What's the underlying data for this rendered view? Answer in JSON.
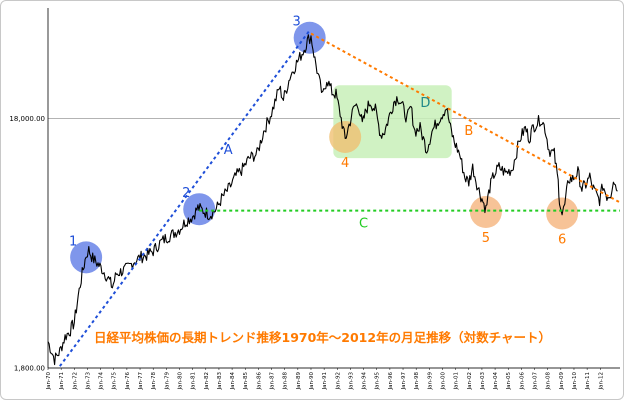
{
  "chart_data": {
    "type": "line",
    "title": "日経平均株価の長期トレンド推移1970年〜2012年の月足推移（対数チャート）",
    "y_scale": "log",
    "ylim": [
      1800,
      50000
    ],
    "y_ticks": [
      {
        "value": 18000,
        "label": "18,000.00"
      },
      {
        "value": 1800,
        "label": "1,800.00"
      }
    ],
    "xlim": [
      1970,
      2013.5
    ],
    "x_tick_labels": [
      "Jan-70",
      "Jan-71",
      "Jan-72",
      "Jan-73",
      "Jan-74",
      "Jan-75",
      "Jan-76",
      "Jan-77",
      "Jan-78",
      "Jan-79",
      "Jan-80",
      "Jan-81",
      "Jan-82",
      "Jan-83",
      "Jan-84",
      "Jan-85",
      "Jan-86",
      "Jan-87",
      "Jan-88",
      "Jan-89",
      "Jan-90",
      "Jan-91",
      "Jan-92",
      "Jan-93",
      "Jan-94",
      "Jan-95",
      "Jan-96",
      "Jan-97",
      "Jan-98",
      "Jan-99",
      "Jan-00",
      "Jan-01",
      "Jan-02",
      "Jan-03",
      "Jan-04",
      "Jan-05",
      "Jan-06",
      "Jan-07",
      "Jan-08",
      "Jan-09",
      "Jan-10",
      "Jan-11",
      "Jan-12"
    ],
    "series": [
      {
        "color": "#000000",
        "points": [
          [
            1970.0,
            2300
          ],
          [
            1970.5,
            1950
          ],
          [
            1970.9,
            2100
          ],
          [
            1971.3,
            2400
          ],
          [
            1971.7,
            2550
          ],
          [
            1972.0,
            2750
          ],
          [
            1972.3,
            3500
          ],
          [
            1972.6,
            4300
          ],
          [
            1972.9,
            5100
          ],
          [
            1973.1,
            5350
          ],
          [
            1973.4,
            4950
          ],
          [
            1973.8,
            4700
          ],
          [
            1974.1,
            4500
          ],
          [
            1974.6,
            4100
          ],
          [
            1974.9,
            3800
          ],
          [
            1975.2,
            4300
          ],
          [
            1975.6,
            4400
          ],
          [
            1976.0,
            4500
          ],
          [
            1976.5,
            4800
          ],
          [
            1977.0,
            5000
          ],
          [
            1977.5,
            5100
          ],
          [
            1978.0,
            5300
          ],
          [
            1978.5,
            5700
          ],
          [
            1979.0,
            6000
          ],
          [
            1979.5,
            6200
          ],
          [
            1980.0,
            6500
          ],
          [
            1980.5,
            7000
          ],
          [
            1981.0,
            7300
          ],
          [
            1981.4,
            7900
          ],
          [
            1981.8,
            7700
          ],
          [
            1982.3,
            7400
          ],
          [
            1982.8,
            7800
          ],
          [
            1983.2,
            8600
          ],
          [
            1983.8,
            9500
          ],
          [
            1984.3,
            10600
          ],
          [
            1984.8,
            11300
          ],
          [
            1985.3,
            12500
          ],
          [
            1985.9,
            13000
          ],
          [
            1986.4,
            16000
          ],
          [
            1987.0,
            19000
          ],
          [
            1987.6,
            24000
          ],
          [
            1987.9,
            21500
          ],
          [
            1988.4,
            26500
          ],
          [
            1988.9,
            30000
          ],
          [
            1989.4,
            33500
          ],
          [
            1989.8,
            37500
          ],
          [
            1990.0,
            38500
          ],
          [
            1990.3,
            31000
          ],
          [
            1990.7,
            24500
          ],
          [
            1990.9,
            22000
          ],
          [
            1991.2,
            26000
          ],
          [
            1991.6,
            23000
          ],
          [
            1991.9,
            22500
          ],
          [
            1992.3,
            18000
          ],
          [
            1992.6,
            14800
          ],
          [
            1992.9,
            17000
          ],
          [
            1993.3,
            20200
          ],
          [
            1993.6,
            20500
          ],
          [
            1993.9,
            17000
          ],
          [
            1994.2,
            19500
          ],
          [
            1994.5,
            21000
          ],
          [
            1994.9,
            19500
          ],
          [
            1995.3,
            15500
          ],
          [
            1995.6,
            16000
          ],
          [
            1995.9,
            18000
          ],
          [
            1996.3,
            21000
          ],
          [
            1996.6,
            22000
          ],
          [
            1996.9,
            20500
          ],
          [
            1997.3,
            18000
          ],
          [
            1997.6,
            20000
          ],
          [
            1997.9,
            16000
          ],
          [
            1998.3,
            16500
          ],
          [
            1998.8,
            13500
          ],
          [
            1999.2,
            16000
          ],
          [
            1999.6,
            17500
          ],
          [
            1999.9,
            18500
          ],
          [
            2000.3,
            20000
          ],
          [
            2000.6,
            16500
          ],
          [
            2000.9,
            14500
          ],
          [
            2001.3,
            13000
          ],
          [
            2001.7,
            10500
          ],
          [
            2002.0,
            10000
          ],
          [
            2002.3,
            11500
          ],
          [
            2002.7,
            9500
          ],
          [
            2003.0,
            8600
          ],
          [
            2003.3,
            7800
          ],
          [
            2003.6,
            9500
          ],
          [
            2003.9,
            10700
          ],
          [
            2004.3,
            11500
          ],
          [
            2004.8,
            10900
          ],
          [
            2005.3,
            11300
          ],
          [
            2005.9,
            15000
          ],
          [
            2006.3,
            16500
          ],
          [
            2006.6,
            15000
          ],
          [
            2006.9,
            16700
          ],
          [
            2007.3,
            17500
          ],
          [
            2007.5,
            18000
          ],
          [
            2007.8,
            16500
          ],
          [
            2008.1,
            13500
          ],
          [
            2008.5,
            13000
          ],
          [
            2008.8,
            10000
          ],
          [
            2008.9,
            8500
          ],
          [
            2009.1,
            7400
          ],
          [
            2009.3,
            8100
          ],
          [
            2009.6,
            10300
          ],
          [
            2009.9,
            10300
          ],
          [
            2010.3,
            11000
          ],
          [
            2010.6,
            9400
          ],
          [
            2010.9,
            9800
          ],
          [
            2011.2,
            10500
          ],
          [
            2011.4,
            9600
          ],
          [
            2011.8,
            8700
          ],
          [
            2011.95,
            8500
          ],
          [
            2012.2,
            9700
          ],
          [
            2012.5,
            8800
          ],
          [
            2012.8,
            9000
          ],
          [
            2013.0,
            10400
          ],
          [
            2013.3,
            9200
          ]
        ]
      }
    ],
    "trendlines": [
      {
        "label": "A",
        "color": "#1f4fd8",
        "style": "dotted",
        "from": [
          1970.9,
          1830
        ],
        "to": [
          1989.95,
          41000
        ]
      },
      {
        "label": "B",
        "color": "#ff7a00",
        "style": "dotted",
        "from": [
          1990.0,
          39500
        ],
        "to": [
          2013.5,
          8300
        ]
      },
      {
        "label": "C",
        "color": "#22cc22",
        "style": "dotted",
        "from": [
          1981.5,
          7700
        ],
        "to": [
          2013.5,
          7700
        ]
      }
    ],
    "marked_points": [
      {
        "label": "1",
        "x": 1972.9,
        "y": 5000,
        "color": "#5b78e6",
        "label_color": "#1f4fd8",
        "label_pos": "top-left"
      },
      {
        "label": "2",
        "x": 1981.5,
        "y": 7800,
        "color": "#5b78e6",
        "label_color": "#1f4fd8",
        "label_pos": "top-left"
      },
      {
        "label": "3",
        "x": 1989.9,
        "y": 38000,
        "color": "#5b78e6",
        "label_color": "#1f4fd8",
        "label_pos": "top-left"
      },
      {
        "label": "4",
        "x": 1992.6,
        "y": 15200,
        "color": "#f0bf70",
        "label_color": "#ff7a00",
        "label_pos": "bottom"
      },
      {
        "label": "5",
        "x": 2003.3,
        "y": 7600,
        "color": "#f5b27a",
        "label_color": "#ff7a00",
        "label_pos": "bottom"
      },
      {
        "label": "6",
        "x": 2009.1,
        "y": 7500,
        "color": "#f5b27a",
        "label_color": "#ff7a00",
        "label_pos": "bottom"
      }
    ],
    "regions": [
      {
        "label": "D",
        "x0": 1991.7,
        "x1": 2000.7,
        "y0": 12500,
        "y1": 24500,
        "color": "#c8f0b8"
      }
    ],
    "labels": [
      {
        "text": "A",
        "x": 1983.7,
        "y": 13000,
        "color": "#1f4fd8"
      },
      {
        "text": "B",
        "x": 2002.0,
        "y": 15500,
        "color": "#ff7a00"
      },
      {
        "text": "C",
        "x": 1994.0,
        "y": 6600,
        "color": "#22cc22"
      },
      {
        "text": "D",
        "x": 1998.7,
        "y": 20000,
        "color": "#1f8888"
      }
    ],
    "grid": "horizontal",
    "legend": "none"
  }
}
